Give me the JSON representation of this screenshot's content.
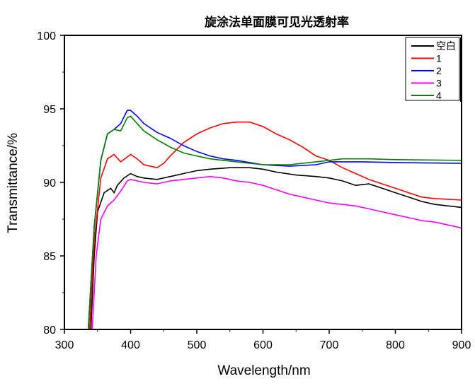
{
  "chart_data": {
    "type": "line",
    "title": "旋涂法单面膜可见光透射率",
    "xlabel": "Wavelength/nm",
    "ylabel": "Transmittance/%",
    "xlim": [
      300,
      900
    ],
    "ylim": [
      80,
      100
    ],
    "xticks": [
      300,
      400,
      500,
      600,
      700,
      800,
      900
    ],
    "yticks": [
      80,
      85,
      90,
      95,
      100
    ],
    "grid": false,
    "legend_position": "top-right",
    "series": [
      {
        "name": "空白",
        "color": "#000000",
        "x": [
          340,
          345,
          350,
          360,
          370,
          375,
          380,
          390,
          400,
          410,
          420,
          440,
          460,
          480,
          500,
          520,
          550,
          580,
          600,
          620,
          650,
          680,
          700,
          720,
          740,
          760,
          780,
          800,
          820,
          840,
          860,
          880,
          900
        ],
        "y": [
          80,
          85,
          88,
          89.3,
          89.6,
          89.3,
          89.8,
          90.3,
          90.6,
          90.4,
          90.3,
          90.2,
          90.4,
          90.6,
          90.8,
          90.9,
          91.0,
          91.0,
          90.9,
          90.7,
          90.5,
          90.4,
          90.3,
          90.1,
          89.8,
          89.9,
          89.6,
          89.3,
          89.0,
          88.7,
          88.5,
          88.4,
          88.3
        ]
      },
      {
        "name": "1",
        "color": "#ff0000",
        "x": [
          338,
          345,
          355,
          365,
          375,
          385,
          400,
          410,
          420,
          440,
          450,
          460,
          480,
          500,
          520,
          540,
          560,
          580,
          600,
          620,
          640,
          660,
          680,
          700,
          720,
          740,
          760,
          780,
          800,
          820,
          840,
          860,
          880,
          900
        ],
        "y": [
          80,
          86,
          90.3,
          91.6,
          91.9,
          91.4,
          91.9,
          91.6,
          91.2,
          91.0,
          91.3,
          91.8,
          92.7,
          93.3,
          93.7,
          94.0,
          94.1,
          94.1,
          93.8,
          93.3,
          92.9,
          92.4,
          91.8,
          91.5,
          91.0,
          90.6,
          90.2,
          89.9,
          89.6,
          89.3,
          89.0,
          88.9,
          88.85,
          88.8
        ]
      },
      {
        "name": "2",
        "color": "#0000ff",
        "x": [
          336,
          345,
          355,
          365,
          375,
          385,
          395,
          400,
          410,
          420,
          440,
          460,
          480,
          500,
          520,
          540,
          560,
          600,
          640,
          680,
          700,
          750,
          800,
          900
        ],
        "y": [
          80,
          87,
          91.5,
          93.3,
          93.6,
          94.0,
          94.9,
          94.9,
          94.5,
          94.0,
          93.4,
          93.0,
          92.5,
          92.1,
          91.8,
          91.6,
          91.5,
          91.2,
          91.1,
          91.2,
          91.4,
          91.4,
          91.35,
          91.3
        ]
      },
      {
        "name": "3",
        "color": "#ff00ff",
        "x": [
          342,
          348,
          355,
          365,
          375,
          385,
          395,
          400,
          420,
          440,
          460,
          480,
          500,
          520,
          540,
          560,
          580,
          600,
          620,
          640,
          660,
          680,
          700,
          720,
          740,
          760,
          780,
          800,
          820,
          840,
          860,
          880,
          900
        ],
        "y": [
          80,
          85,
          87.5,
          88.4,
          88.8,
          89.4,
          90.1,
          90.2,
          90.0,
          89.9,
          90.1,
          90.2,
          90.3,
          90.4,
          90.3,
          90.1,
          90.0,
          89.8,
          89.5,
          89.2,
          89.0,
          88.8,
          88.6,
          88.5,
          88.4,
          88.2,
          88.0,
          87.8,
          87.6,
          87.4,
          87.3,
          87.1,
          86.9
        ]
      },
      {
        "name": "4",
        "color": "#008000",
        "x": [
          336,
          345,
          355,
          365,
          375,
          385,
          395,
          400,
          410,
          420,
          440,
          460,
          480,
          500,
          520,
          540,
          560,
          600,
          640,
          680,
          700,
          720,
          760,
          800,
          900
        ],
        "y": [
          80,
          87,
          91.5,
          93.3,
          93.6,
          93.5,
          94.4,
          94.5,
          94.0,
          93.5,
          92.9,
          92.4,
          92.0,
          91.8,
          91.6,
          91.5,
          91.4,
          91.2,
          91.2,
          91.4,
          91.5,
          91.6,
          91.6,
          91.55,
          91.5
        ]
      }
    ]
  }
}
